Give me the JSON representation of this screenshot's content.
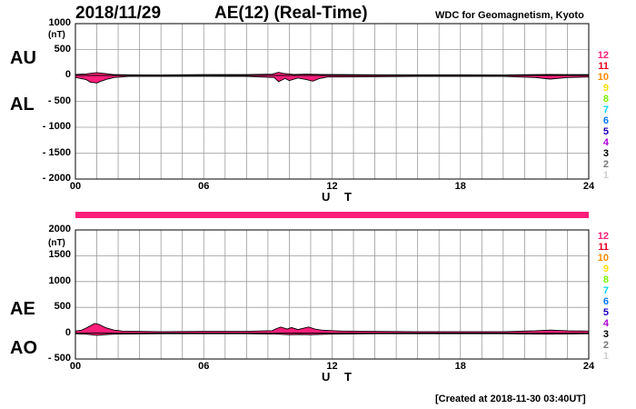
{
  "header": {
    "date": "2018/11/29",
    "title": "AE(12) (Real-Time)",
    "source": "WDC for Geomagnetism, Kyoto"
  },
  "footer": {
    "created": "[Created at 2018-11-30 03:40UT]"
  },
  "legend": {
    "items": [
      {
        "label": "12",
        "color": "#ff1f7a"
      },
      {
        "label": "11",
        "color": "#e8001c"
      },
      {
        "label": "10",
        "color": "#ff8c00"
      },
      {
        "label": "9",
        "color": "#ffe100"
      },
      {
        "label": "8",
        "color": "#7cf000"
      },
      {
        "label": "7",
        "color": "#00d8ff"
      },
      {
        "label": "6",
        "color": "#007bff"
      },
      {
        "label": "5",
        "color": "#2200c0"
      },
      {
        "label": "4",
        "color": "#b300e0"
      },
      {
        "label": "3",
        "color": "#000000"
      },
      {
        "label": "2",
        "color": "#777777"
      },
      {
        "label": "1",
        "color": "#cfcfcf"
      }
    ]
  },
  "separator_color": "#ff1f7a",
  "chart_data": [
    {
      "type": "area",
      "upper_label": "AU",
      "lower_label": "AL",
      "unit": "(nT)",
      "xlabel": "U T",
      "xlim": [
        0,
        24
      ],
      "ylim": [
        -2000,
        1000
      ],
      "grid": true,
      "fill_color": "#ff1f7a",
      "yticks": [
        {
          "v": 1000,
          "label": "1000"
        },
        {
          "v": 500,
          "label": "500"
        },
        {
          "v": 0,
          "label": "0"
        },
        {
          "v": -500,
          "label": "- 500"
        },
        {
          "v": -1000,
          "label": "- 1000"
        },
        {
          "v": -1500,
          "label": "- 1500"
        },
        {
          "v": -2000,
          "label": "- 2000"
        }
      ],
      "xticks": [
        {
          "v": 0,
          "label": "00"
        },
        {
          "v": 6,
          "label": "06"
        },
        {
          "v": 12,
          "label": "12"
        },
        {
          "v": 18,
          "label": "18"
        },
        {
          "v": 24,
          "label": "24"
        }
      ],
      "series": [
        {
          "key": "upper",
          "x": [
            0,
            0.5,
            0.8,
            1.0,
            1.3,
            1.8,
            2.5,
            4,
            6,
            8,
            9.2,
            9.5,
            9.7,
            10.2,
            10.8,
            11.5,
            12.5,
            14,
            16,
            18,
            20,
            21.5,
            22.2,
            23,
            24
          ],
          "values": [
            20,
            30,
            45,
            55,
            40,
            15,
            12,
            10,
            15,
            15,
            25,
            60,
            40,
            20,
            25,
            20,
            15,
            12,
            12,
            12,
            10,
            15,
            20,
            15,
            15
          ]
        },
        {
          "key": "lower",
          "x": [
            0,
            0.5,
            0.7,
            1.0,
            1.2,
            1.5,
            1.8,
            2.5,
            4,
            6,
            8,
            9.3,
            9.5,
            9.8,
            10.0,
            10.4,
            10.8,
            11.1,
            11.4,
            11.8,
            12.5,
            14,
            16,
            18,
            20,
            21.5,
            22.2,
            23,
            24
          ],
          "values": [
            -40,
            -80,
            -130,
            -145,
            -110,
            -70,
            -40,
            -20,
            -20,
            -15,
            -20,
            -40,
            -120,
            -60,
            -100,
            -50,
            -80,
            -110,
            -60,
            -30,
            -30,
            -25,
            -20,
            -20,
            -20,
            -40,
            -70,
            -40,
            -30
          ]
        }
      ]
    },
    {
      "type": "area",
      "upper_label": "AE",
      "lower_label": "AO",
      "unit": "(nT)",
      "xlabel": "U T",
      "xlim": [
        0,
        24
      ],
      "ylim": [
        -500,
        2000
      ],
      "grid": true,
      "fill_color": "#ff1f7a",
      "yticks": [
        {
          "v": 2000,
          "label": "2000"
        },
        {
          "v": 1500,
          "label": "1500"
        },
        {
          "v": 1000,
          "label": "1000"
        },
        {
          "v": 500,
          "label": "500"
        },
        {
          "v": 0,
          "label": "0"
        },
        {
          "v": -500,
          "label": "- 500"
        }
      ],
      "xticks": [
        {
          "v": 0,
          "label": "00"
        },
        {
          "v": 6,
          "label": "06"
        },
        {
          "v": 12,
          "label": "12"
        },
        {
          "v": 18,
          "label": "18"
        },
        {
          "v": 24,
          "label": "24"
        }
      ],
      "series": [
        {
          "key": "upper",
          "x": [
            0,
            0.3,
            0.6,
            0.9,
            1.1,
            1.4,
            1.8,
            2.2,
            3,
            4,
            6,
            8,
            9.2,
            9.4,
            9.6,
            9.9,
            10.1,
            10.4,
            10.7,
            10.9,
            11.2,
            11.5,
            12,
            12.5,
            14,
            16,
            18,
            20,
            21.5,
            22.2,
            23,
            24
          ],
          "values": [
            40,
            60,
            120,
            190,
            170,
            110,
            60,
            40,
            35,
            30,
            35,
            35,
            50,
            90,
            120,
            80,
            110,
            70,
            100,
            120,
            80,
            60,
            50,
            40,
            35,
            30,
            30,
            30,
            45,
            60,
            45,
            40
          ]
        },
        {
          "key": "lower",
          "x": [
            0,
            0.5,
            1.0,
            1.5,
            2,
            4,
            6,
            8,
            9.5,
            10,
            10.5,
            11,
            12,
            14,
            16,
            18,
            20,
            22,
            24
          ],
          "values": [
            -10,
            -20,
            -40,
            -25,
            -15,
            -10,
            -10,
            -10,
            -20,
            -30,
            -25,
            -30,
            -15,
            -10,
            -10,
            -10,
            -10,
            -20,
            -10
          ]
        }
      ]
    }
  ]
}
